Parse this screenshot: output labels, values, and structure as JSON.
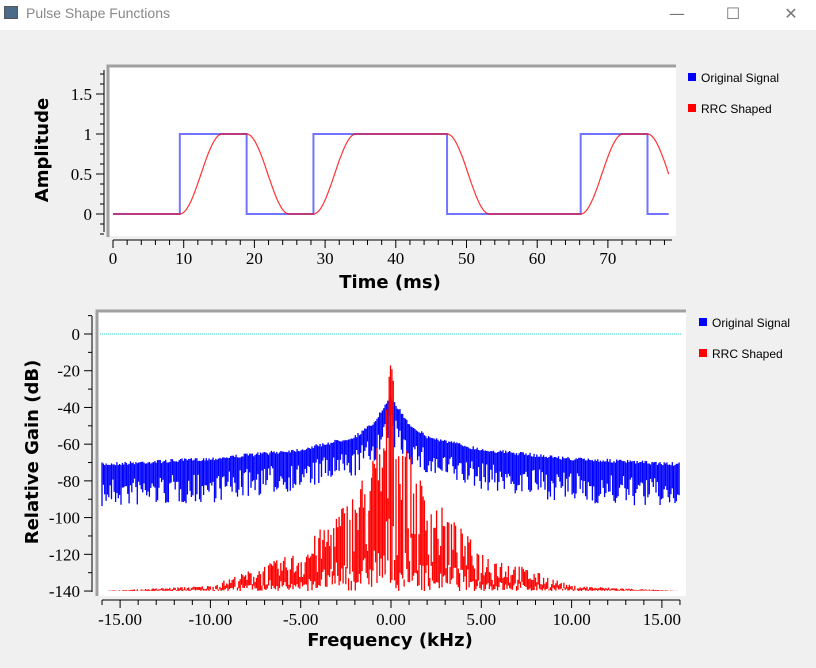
{
  "window": {
    "title": "Pulse Shape Functions",
    "minimize": "—",
    "maximize": "☐",
    "close": "✕"
  },
  "colors": {
    "original": "#0000ff",
    "rrc": "#ff0000",
    "reference": "#00c8c8"
  },
  "chart_data": [
    {
      "type": "line",
      "title": "",
      "xlabel": "Time (ms)",
      "ylabel": "Amplitude",
      "xlim": [
        0,
        79
      ],
      "ylim": [
        -0.28,
        1.85
      ],
      "xticks": [
        "0",
        "10",
        "20",
        "30",
        "40",
        "50",
        "60",
        "70"
      ],
      "yticks": [
        "0",
        "0.5",
        "1",
        "1.5"
      ],
      "legend": {
        "placement": "right",
        "entries": [
          "Original Signal",
          "RRC Shaped"
        ]
      },
      "symbol_period_ms": 9.45,
      "bits": [
        0,
        1,
        0,
        1,
        1,
        0,
        0,
        1,
        0
      ],
      "rrc_transition_ms": 6,
      "series": [
        {
          "name": "Original Signal",
          "style": "rectangular pulses"
        },
        {
          "name": "RRC Shaped",
          "style": "raised-cosine transitions"
        }
      ]
    },
    {
      "type": "line",
      "title": "",
      "xlabel": "Frequency (kHz)",
      "ylabel": "Relative Gain (dB)",
      "xlim": [
        -16.2,
        16.2
      ],
      "ylim": [
        -142,
        13
      ],
      "xticks": [
        "-15.00",
        "-10.00",
        "-5.00",
        "0.00",
        "5.00",
        "10.00",
        "15.00"
      ],
      "yticks": [
        "0",
        "-20",
        "-40",
        "-60",
        "-80",
        "-100",
        "-120",
        "-140"
      ],
      "reference_line_db": 0,
      "legend": {
        "placement": "right",
        "entries": [
          "Original Signal",
          "RRC Shaped"
        ]
      },
      "envelope_freq_khz": [
        0,
        0.3,
        1,
        2,
        5,
        10,
        16
      ],
      "series": [
        {
          "name": "Original Signal",
          "upper_db": [
            -33,
            -38,
            -48,
            -55,
            -62,
            -67,
            -70
          ],
          "lower_db": [
            -60,
            -65,
            -70,
            -78,
            -85,
            -92,
            -95
          ]
        },
        {
          "name": "RRC Shaped",
          "upper_db": [
            -15,
            -40,
            -65,
            -85,
            -118,
            -137,
            -140
          ],
          "lower_db": [
            -140,
            -140,
            -140,
            -140,
            -140,
            -140,
            -140
          ]
        }
      ]
    }
  ]
}
